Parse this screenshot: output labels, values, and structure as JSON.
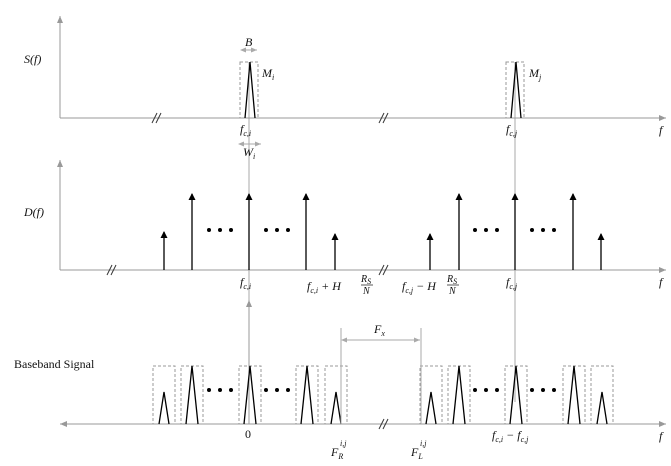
{
  "panels": {
    "s": {
      "ylabel": "S(f)",
      "xlabel": "f",
      "bandwidth_label": "B",
      "width_label": "W",
      "width_sub": "i",
      "peak_i": "M",
      "peak_i_sub": "i",
      "peak_j": "M",
      "peak_j_sub": "j",
      "tick_i": "f",
      "tick_i_sub": "c,i",
      "tick_j": "f",
      "tick_j_sub": "c,j"
    },
    "d": {
      "ylabel": "D(f)",
      "xlabel": "f",
      "tick_i": "f",
      "tick_i_sub": "c,i",
      "tick_j": "f",
      "tick_j_sub": "c,j",
      "plus_label": "f",
      "plus_sub": "c,i",
      "plus_op": " + H",
      "minus_label": "f",
      "minus_sub": "c,j",
      "minus_op": " − H",
      "frac_num": "R",
      "frac_num_sub": "S",
      "frac_den": "N"
    },
    "b": {
      "ylabel": "Baseband Signal",
      "xlabel": "f",
      "zero": "0",
      "fx": "F",
      "fx_sub": "x",
      "fr": "F",
      "fr_sub": "R",
      "fr_sup": "i,j",
      "fl": "F",
      "fl_sub": "L",
      "fl_sup": "i,j",
      "diff_a": "f",
      "diff_a_sub": "c,i",
      "diff_op": " − ",
      "diff_b": "f",
      "diff_b_sub": "c,j"
    }
  },
  "ellipsis": "• • •"
}
